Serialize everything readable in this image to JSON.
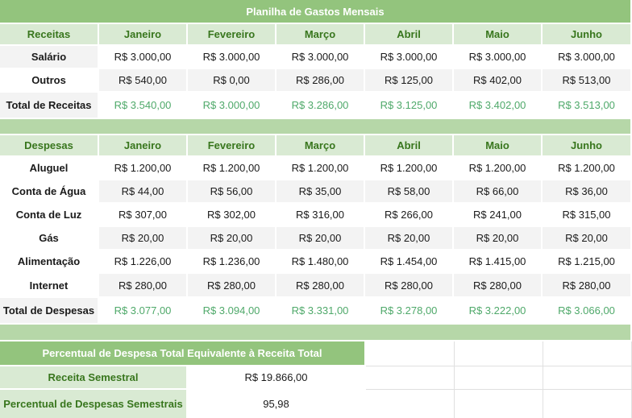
{
  "title": "Planilha de Gastos Mensais",
  "months": [
    "Janeiro",
    "Fevereiro",
    "Março",
    "Abril",
    "Maio",
    "Junho"
  ],
  "receitas": {
    "header": "Receitas",
    "rows": [
      {
        "label": "Salário",
        "values": [
          "R$ 3.000,00",
          "R$ 3.000,00",
          "R$ 3.000,00",
          "R$ 3.000,00",
          "R$ 3.000,00",
          "R$ 3.000,00"
        ]
      },
      {
        "label": "Outros",
        "values": [
          "R$ 540,00",
          "R$ 0,00",
          "R$ 286,00",
          "R$ 125,00",
          "R$ 402,00",
          "R$ 513,00"
        ]
      }
    ],
    "total": {
      "label": "Total de Receitas",
      "values": [
        "R$ 3.540,00",
        "R$ 3.000,00",
        "R$ 3.286,00",
        "R$ 3.125,00",
        "R$ 3.402,00",
        "R$ 3.513,00"
      ]
    }
  },
  "despesas": {
    "header": "Despesas",
    "rows": [
      {
        "label": "Aluguel",
        "values": [
          "R$ 1.200,00",
          "R$ 1.200,00",
          "R$ 1.200,00",
          "R$ 1.200,00",
          "R$ 1.200,00",
          "R$ 1.200,00"
        ]
      },
      {
        "label": "Conta de Água",
        "values": [
          "R$ 44,00",
          "R$ 56,00",
          "R$ 35,00",
          "R$ 58,00",
          "R$ 66,00",
          "R$ 36,00"
        ]
      },
      {
        "label": "Conta de Luz",
        "values": [
          "R$ 307,00",
          "R$ 302,00",
          "R$ 316,00",
          "R$ 266,00",
          "R$ 241,00",
          "R$ 315,00"
        ]
      },
      {
        "label": "Gás",
        "values": [
          "R$ 20,00",
          "R$ 20,00",
          "R$ 20,00",
          "R$ 20,00",
          "R$ 20,00",
          "R$ 20,00"
        ]
      },
      {
        "label": "Alimentação",
        "values": [
          "R$ 1.226,00",
          "R$ 1.236,00",
          "R$ 1.480,00",
          "R$ 1.454,00",
          "R$ 1.415,00",
          "R$ 1.215,00"
        ]
      },
      {
        "label": "Internet",
        "values": [
          "R$ 280,00",
          "R$ 280,00",
          "R$ 280,00",
          "R$ 280,00",
          "R$ 280,00",
          "R$ 280,00"
        ]
      }
    ],
    "total": {
      "label": "Total de Despesas",
      "values": [
        "R$ 3.077,00",
        "R$ 3.094,00",
        "R$ 3.331,00",
        "R$ 3.278,00",
        "R$ 3.222,00",
        "R$ 3.066,00"
      ]
    }
  },
  "percentual": {
    "title": "Percentual de Despesa Total Equivalente à Receita Total",
    "receita_label": "Receita Semestral",
    "receita_value": "R$ 19.866,00",
    "despesa_label": "Percentual de Despesas Semestrais",
    "despesa_value": "95,98"
  },
  "colors": {
    "title_bg": "#93c47d",
    "header_bg": "#d9ead3",
    "header_text": "#38761d",
    "spacer_bg": "#b6d7a8",
    "total_text": "#4fa96a"
  }
}
